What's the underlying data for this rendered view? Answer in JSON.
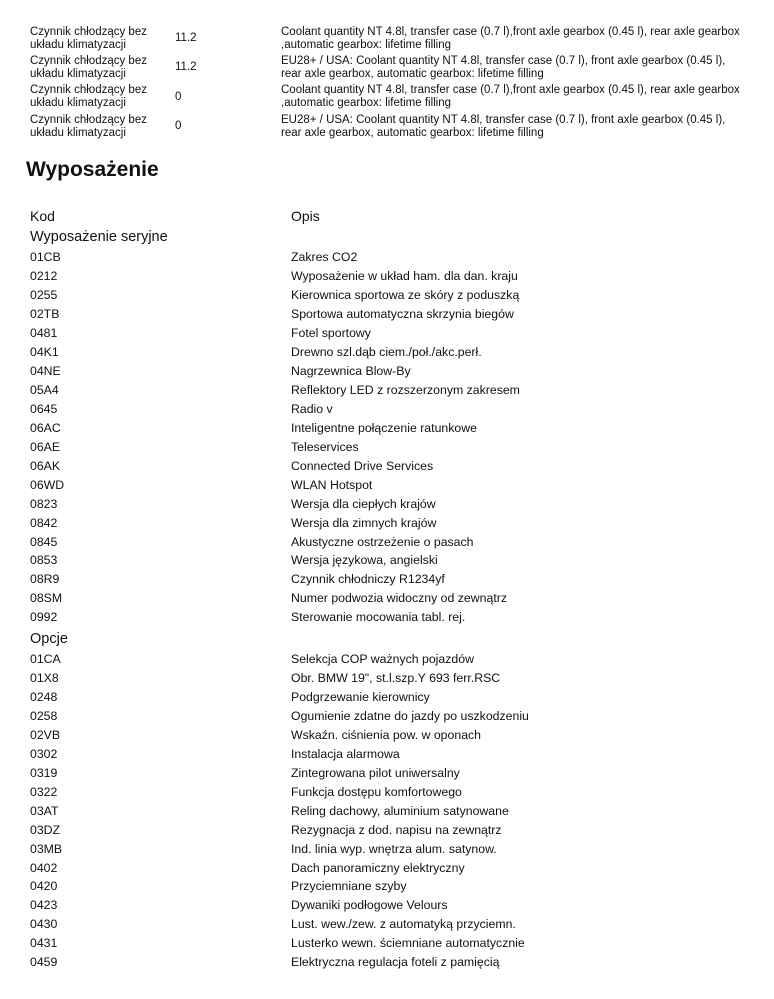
{
  "coolant_rows": [
    {
      "name": "Czynnik chłodzący bez układu klimatyzacji",
      "value": "11.2",
      "desc": "Coolant quantity NT 4.8l, transfer case (0.7 l),front axle gearbox (0.45 l), rear axle gearbox ,automatic gearbox: lifetime filling"
    },
    {
      "name": "Czynnik chłodzący bez układu klimatyzacji",
      "value": "11.2",
      "desc": "EU28+ / USA: Coolant quantity NT 4.8l, transfer case (0.7 l), front axle gearbox (0.45 l), rear axle gearbox, automatic gearbox: lifetime filling"
    },
    {
      "name": "Czynnik chłodzący bez układu klimatyzacji",
      "value": "0",
      "desc": "Coolant quantity NT 4.8l, transfer case (0.7 l),front axle gearbox (0.45 l), rear axle gearbox ,automatic gearbox: lifetime filling"
    },
    {
      "name": "Czynnik chłodzący bez układu klimatyzacji",
      "value": "0",
      "desc": "EU28+ / USA: Coolant quantity NT 4.8l, transfer case (0.7 l), front axle gearbox (0.45 l), rear axle gearbox, automatic gearbox: lifetime filling"
    }
  ],
  "equipment": {
    "title": "Wyposażenie",
    "col_code": "Kod",
    "col_desc": "Opis",
    "sections": [
      {
        "title": "Wyposażenie seryjne",
        "items": [
          [
            "01CB",
            "Zakres CO2"
          ],
          [
            "0212",
            "Wyposażenie w układ ham. dla dan. kraju"
          ],
          [
            "0255",
            "Kierownica sportowa ze skóry z poduszką"
          ],
          [
            "02TB",
            "Sportowa automatyczna skrzynia biegów"
          ],
          [
            "0481",
            "Fotel sportowy"
          ],
          [
            "04K1",
            "Drewno szl.dąb ciem./poł./akc.perł."
          ],
          [
            "04NE",
            "Nagrzewnica Blow-By"
          ],
          [
            "05A4",
            "Reflektory LED z rozszerzonym zakresem"
          ],
          [
            "0645",
            "Radio v"
          ],
          [
            "06AC",
            "Inteligentne połączenie ratunkowe"
          ],
          [
            "06AE",
            "Teleservices"
          ],
          [
            "06AK",
            "Connected Drive Services"
          ],
          [
            "06WD",
            "WLAN Hotspot"
          ],
          [
            "0823",
            "Wersja dla ciepłych krajów"
          ],
          [
            "0842",
            "Wersja dla zimnych krajów"
          ],
          [
            "0845",
            "Akustyczne ostrzeżenie o pasach"
          ],
          [
            "0853",
            "Wersja językowa, angielski"
          ],
          [
            "08R9",
            "Czynnik chłodniczy R1234yf"
          ],
          [
            "08SM",
            "Numer podwozia widoczny od zewnątrz"
          ],
          [
            "0992",
            "Sterowanie mocowania tabl. rej."
          ]
        ]
      },
      {
        "title": "Opcje",
        "items": [
          [
            "01CA",
            "Selekcja COP ważnych pojazdów"
          ],
          [
            "01X8",
            "Obr. BMW 19\", st.l.szp.Y 693 ferr.RSC"
          ],
          [
            "0248",
            "Podgrzewanie kierownicy"
          ],
          [
            "0258",
            "Ogumienie zdatne do jazdy po uszkodzeniu"
          ],
          [
            "02VB",
            "Wskaźn. ciśnienia pow. w oponach"
          ],
          [
            "0302",
            "Instalacja alarmowa"
          ],
          [
            "0319",
            "Zintegrowana pilot uniwersalny"
          ],
          [
            "0322",
            "Funkcja dostępu komfortowego"
          ],
          [
            "03AT",
            "Reling dachowy, aluminium satynowane"
          ],
          [
            "03DZ",
            "Rezygnacja z dod. napisu na zewnątrz"
          ],
          [
            "03MB",
            "Ind. linia wyp. wnętrza alum. satynow."
          ],
          [
            "0402",
            "Dach panoramiczny elektryczny"
          ],
          [
            "0420",
            "Przyciemniane szyby"
          ],
          [
            "0423",
            "Dywaniki podłogowe Velours"
          ],
          [
            "0430",
            "Lust. wew./zew. z automatyką przyciemn."
          ],
          [
            "0431",
            "Lusterko wewn. ściemniane automatycznie"
          ],
          [
            "0459",
            "Elektryczna regulacja foteli z pamięcią"
          ]
        ]
      }
    ]
  }
}
